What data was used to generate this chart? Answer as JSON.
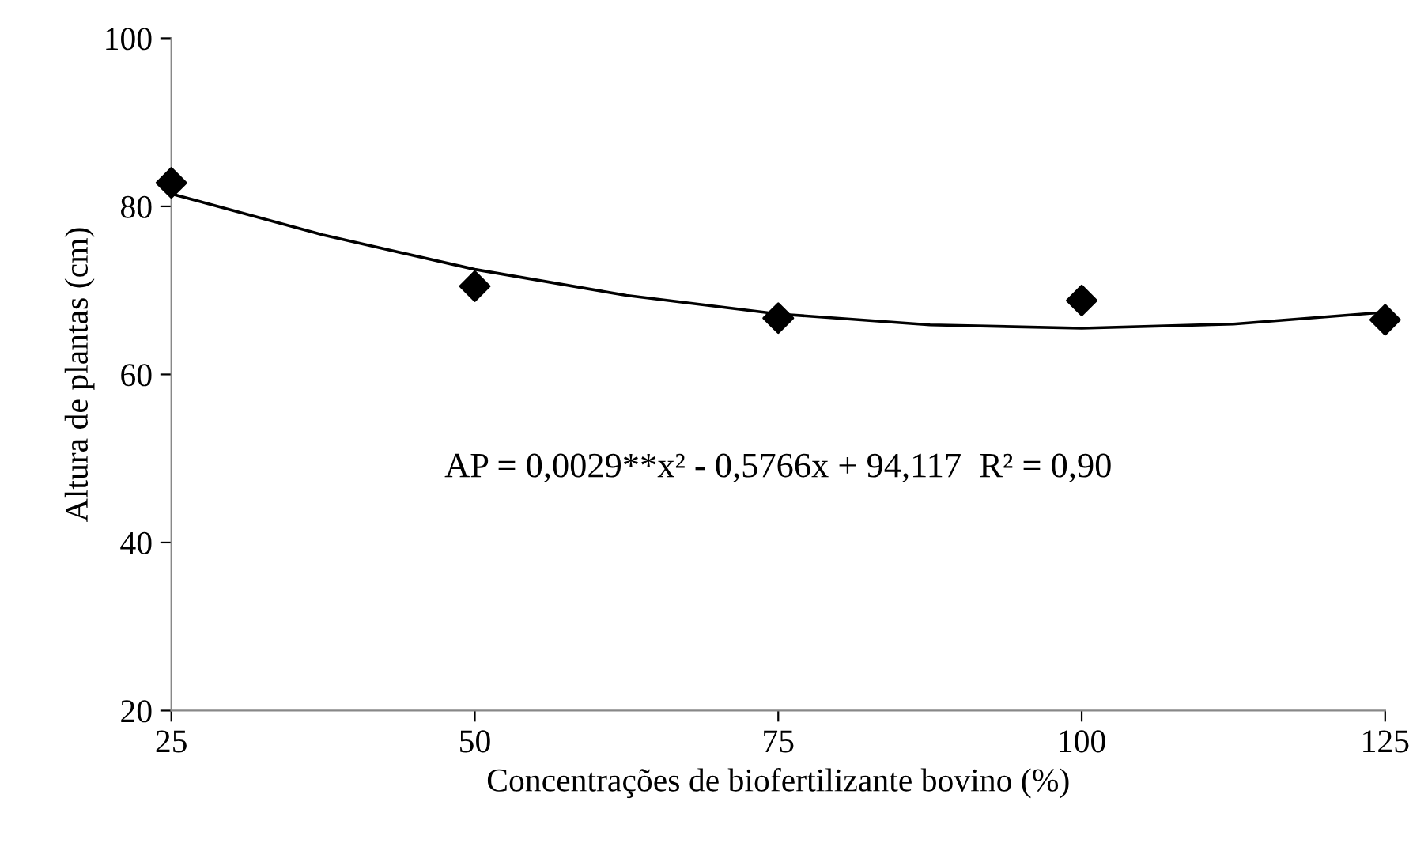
{
  "chart_data": {
    "type": "scatter",
    "xlabel": "Concentrações de biofertilizante bovino (%)",
    "ylabel": "Altura de plantas (cm)",
    "x": [
      25,
      50,
      75,
      100,
      125
    ],
    "series": [
      {
        "color": "#000000",
        "marker": "diamond",
        "values": [
          82.8,
          70.5,
          66.7,
          68.8,
          66.5
        ]
      },
      {
        "type": "line",
        "color": "#000000",
        "line_style": "solid",
        "x": [
          25,
          37.5,
          50,
          62.5,
          75,
          87.5,
          100,
          112.5,
          125
        ],
        "values": [
          81.5,
          76.6,
          72.5,
          69.4,
          67.2,
          65.9,
          65.5,
          66.0,
          67.4
        ]
      }
    ],
    "annotations": [
      "AP = 0,0029**x² - 0,5766x + 94,117  R² = 0,90"
    ],
    "xlim": [
      25,
      125
    ],
    "xticks": [
      25,
      50,
      75,
      100,
      125
    ],
    "ylim": [
      20,
      100
    ],
    "yticks": [
      20,
      40,
      60,
      80,
      100
    ],
    "grid": false,
    "legend": false
  }
}
